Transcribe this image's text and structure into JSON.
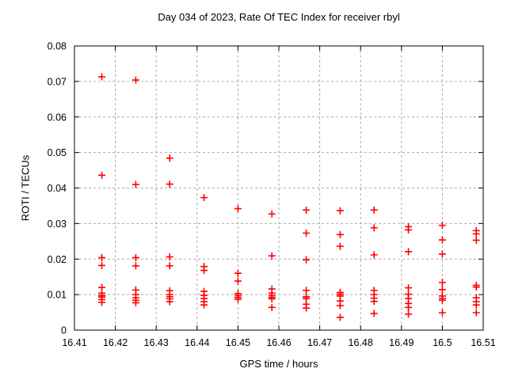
{
  "chart_data": {
    "type": "scatter",
    "title": "Day 034 of 2023, Rate Of TEC Index for receiver rbyl",
    "xlabel": "GPS time / hours",
    "ylabel": "ROTI / TECUs",
    "xlim": [
      16.41,
      16.51
    ],
    "ylim": [
      0,
      0.08
    ],
    "x_tick_values": [
      16.41,
      16.42,
      16.43,
      16.44,
      16.45,
      16.46,
      16.47,
      16.48,
      16.49,
      16.5,
      16.51
    ],
    "x_tick_labels": [
      "16.41",
      "16.42",
      "16.43",
      "16.44",
      "16.45",
      "16.46",
      "16.47",
      "16.48",
      "16.49",
      "16.5",
      "16.51"
    ],
    "y_tick_values": [
      0,
      0.01,
      0.02,
      0.03,
      0.04,
      0.05,
      0.06,
      0.07,
      0.08
    ],
    "y_tick_labels": [
      "0",
      "0.01",
      "0.02",
      "0.03",
      "0.04",
      "0.05",
      "0.06",
      "0.07",
      "0.08"
    ],
    "grid": true,
    "legend": "none",
    "marker": "plus",
    "marker_color": "#ff0000",
    "grid_color": "#aaaaaa",
    "axis_color": "#000000",
    "series": [
      {
        "name": "ROTI",
        "epochs": [
          {
            "t": 16.4167,
            "values": [
              0.0713,
              0.0436,
              0.0204,
              0.0182,
              0.012,
              0.0104,
              0.0097,
              0.0093,
              0.0086,
              0.0078
            ]
          },
          {
            "t": 16.425,
            "values": [
              0.0704,
              0.041,
              0.0204,
              0.0181,
              0.0113,
              0.01,
              0.0091,
              0.0084,
              0.0077
            ]
          },
          {
            "t": 16.4333,
            "values": [
              0.0484,
              0.0411,
              0.0206,
              0.0181,
              0.0111,
              0.01,
              0.0094,
              0.0088,
              0.008
            ]
          },
          {
            "t": 16.4417,
            "values": [
              0.0373,
              0.0179,
              0.0168,
              0.0109,
              0.0098,
              0.0089,
              0.008,
              0.0071
            ]
          },
          {
            "t": 16.45,
            "values": [
              0.0342,
              0.016,
              0.0138,
              0.0103,
              0.0097,
              0.0092,
              0.0087
            ]
          },
          {
            "t": 16.4583,
            "values": [
              0.0327,
              0.0209,
              0.0116,
              0.0104,
              0.0097,
              0.0092,
              0.0088,
              0.0064
            ]
          },
          {
            "t": 16.4667,
            "values": [
              0.0338,
              0.0273,
              0.0198,
              0.0112,
              0.0094,
              0.0089,
              0.0073,
              0.0062
            ]
          },
          {
            "t": 16.475,
            "values": [
              0.0336,
              0.0269,
              0.0236,
              0.0106,
              0.0101,
              0.0096,
              0.0082,
              0.0069,
              0.0036
            ]
          },
          {
            "t": 16.4833,
            "values": [
              0.0338,
              0.0288,
              0.0212,
              0.0112,
              0.01,
              0.009,
              0.0081,
              0.0047
            ]
          },
          {
            "t": 16.4917,
            "values": [
              0.0291,
              0.0282,
              0.0221,
              0.0119,
              0.0101,
              0.0089,
              0.0075,
              0.0064,
              0.0045
            ]
          },
          {
            "t": 16.5,
            "values": [
              0.0295,
              0.0254,
              0.0214,
              0.0134,
              0.0114,
              0.0096,
              0.0089,
              0.0084,
              0.0049
            ]
          },
          {
            "t": 16.5083,
            "values": [
              0.028,
              0.0271,
              0.0253,
              0.0126,
              0.0121,
              0.0091,
              0.008,
              0.0071,
              0.0049
            ]
          }
        ]
      }
    ]
  }
}
